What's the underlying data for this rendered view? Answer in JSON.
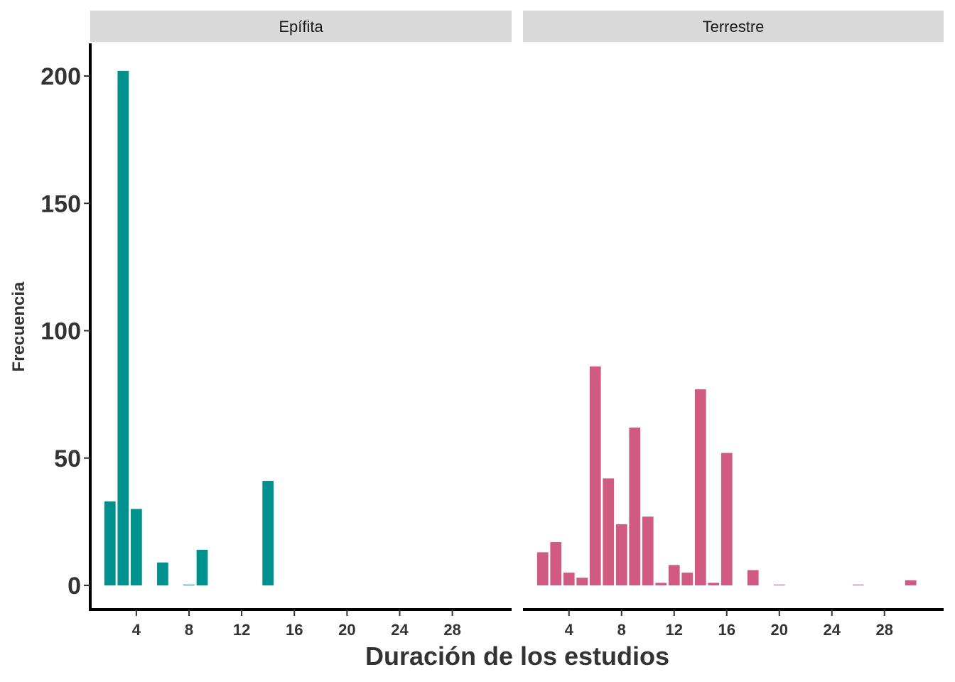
{
  "chart_data": {
    "type": "bar",
    "xlabel": "Duración de los estudios",
    "ylabel": "Frecuencia",
    "ylim": [
      0,
      210
    ],
    "xlim": [
      0.5,
      32.5
    ],
    "yticks": [
      0,
      50,
      100,
      150,
      200
    ],
    "xticks": [
      4,
      8,
      12,
      16,
      20,
      24,
      28
    ],
    "grid": false,
    "legend": "none",
    "panels": [
      {
        "name": "Epífita",
        "color": "#00918F",
        "x": [
          2,
          3,
          4,
          6,
          8,
          9,
          14
        ],
        "values": [
          33,
          202,
          30,
          9,
          0.3,
          14,
          41
        ]
      },
      {
        "name": "Terrestre",
        "color": "#D05A80",
        "x": [
          2,
          3,
          4,
          5,
          6,
          7,
          8,
          9,
          10,
          11,
          12,
          13,
          14,
          15,
          16,
          18,
          20,
          26,
          30
        ],
        "values": [
          13,
          17,
          5,
          3,
          86,
          42,
          24,
          62,
          27,
          1,
          8,
          5,
          77,
          1,
          52,
          6,
          0.3,
          0.3,
          2
        ]
      }
    ]
  }
}
